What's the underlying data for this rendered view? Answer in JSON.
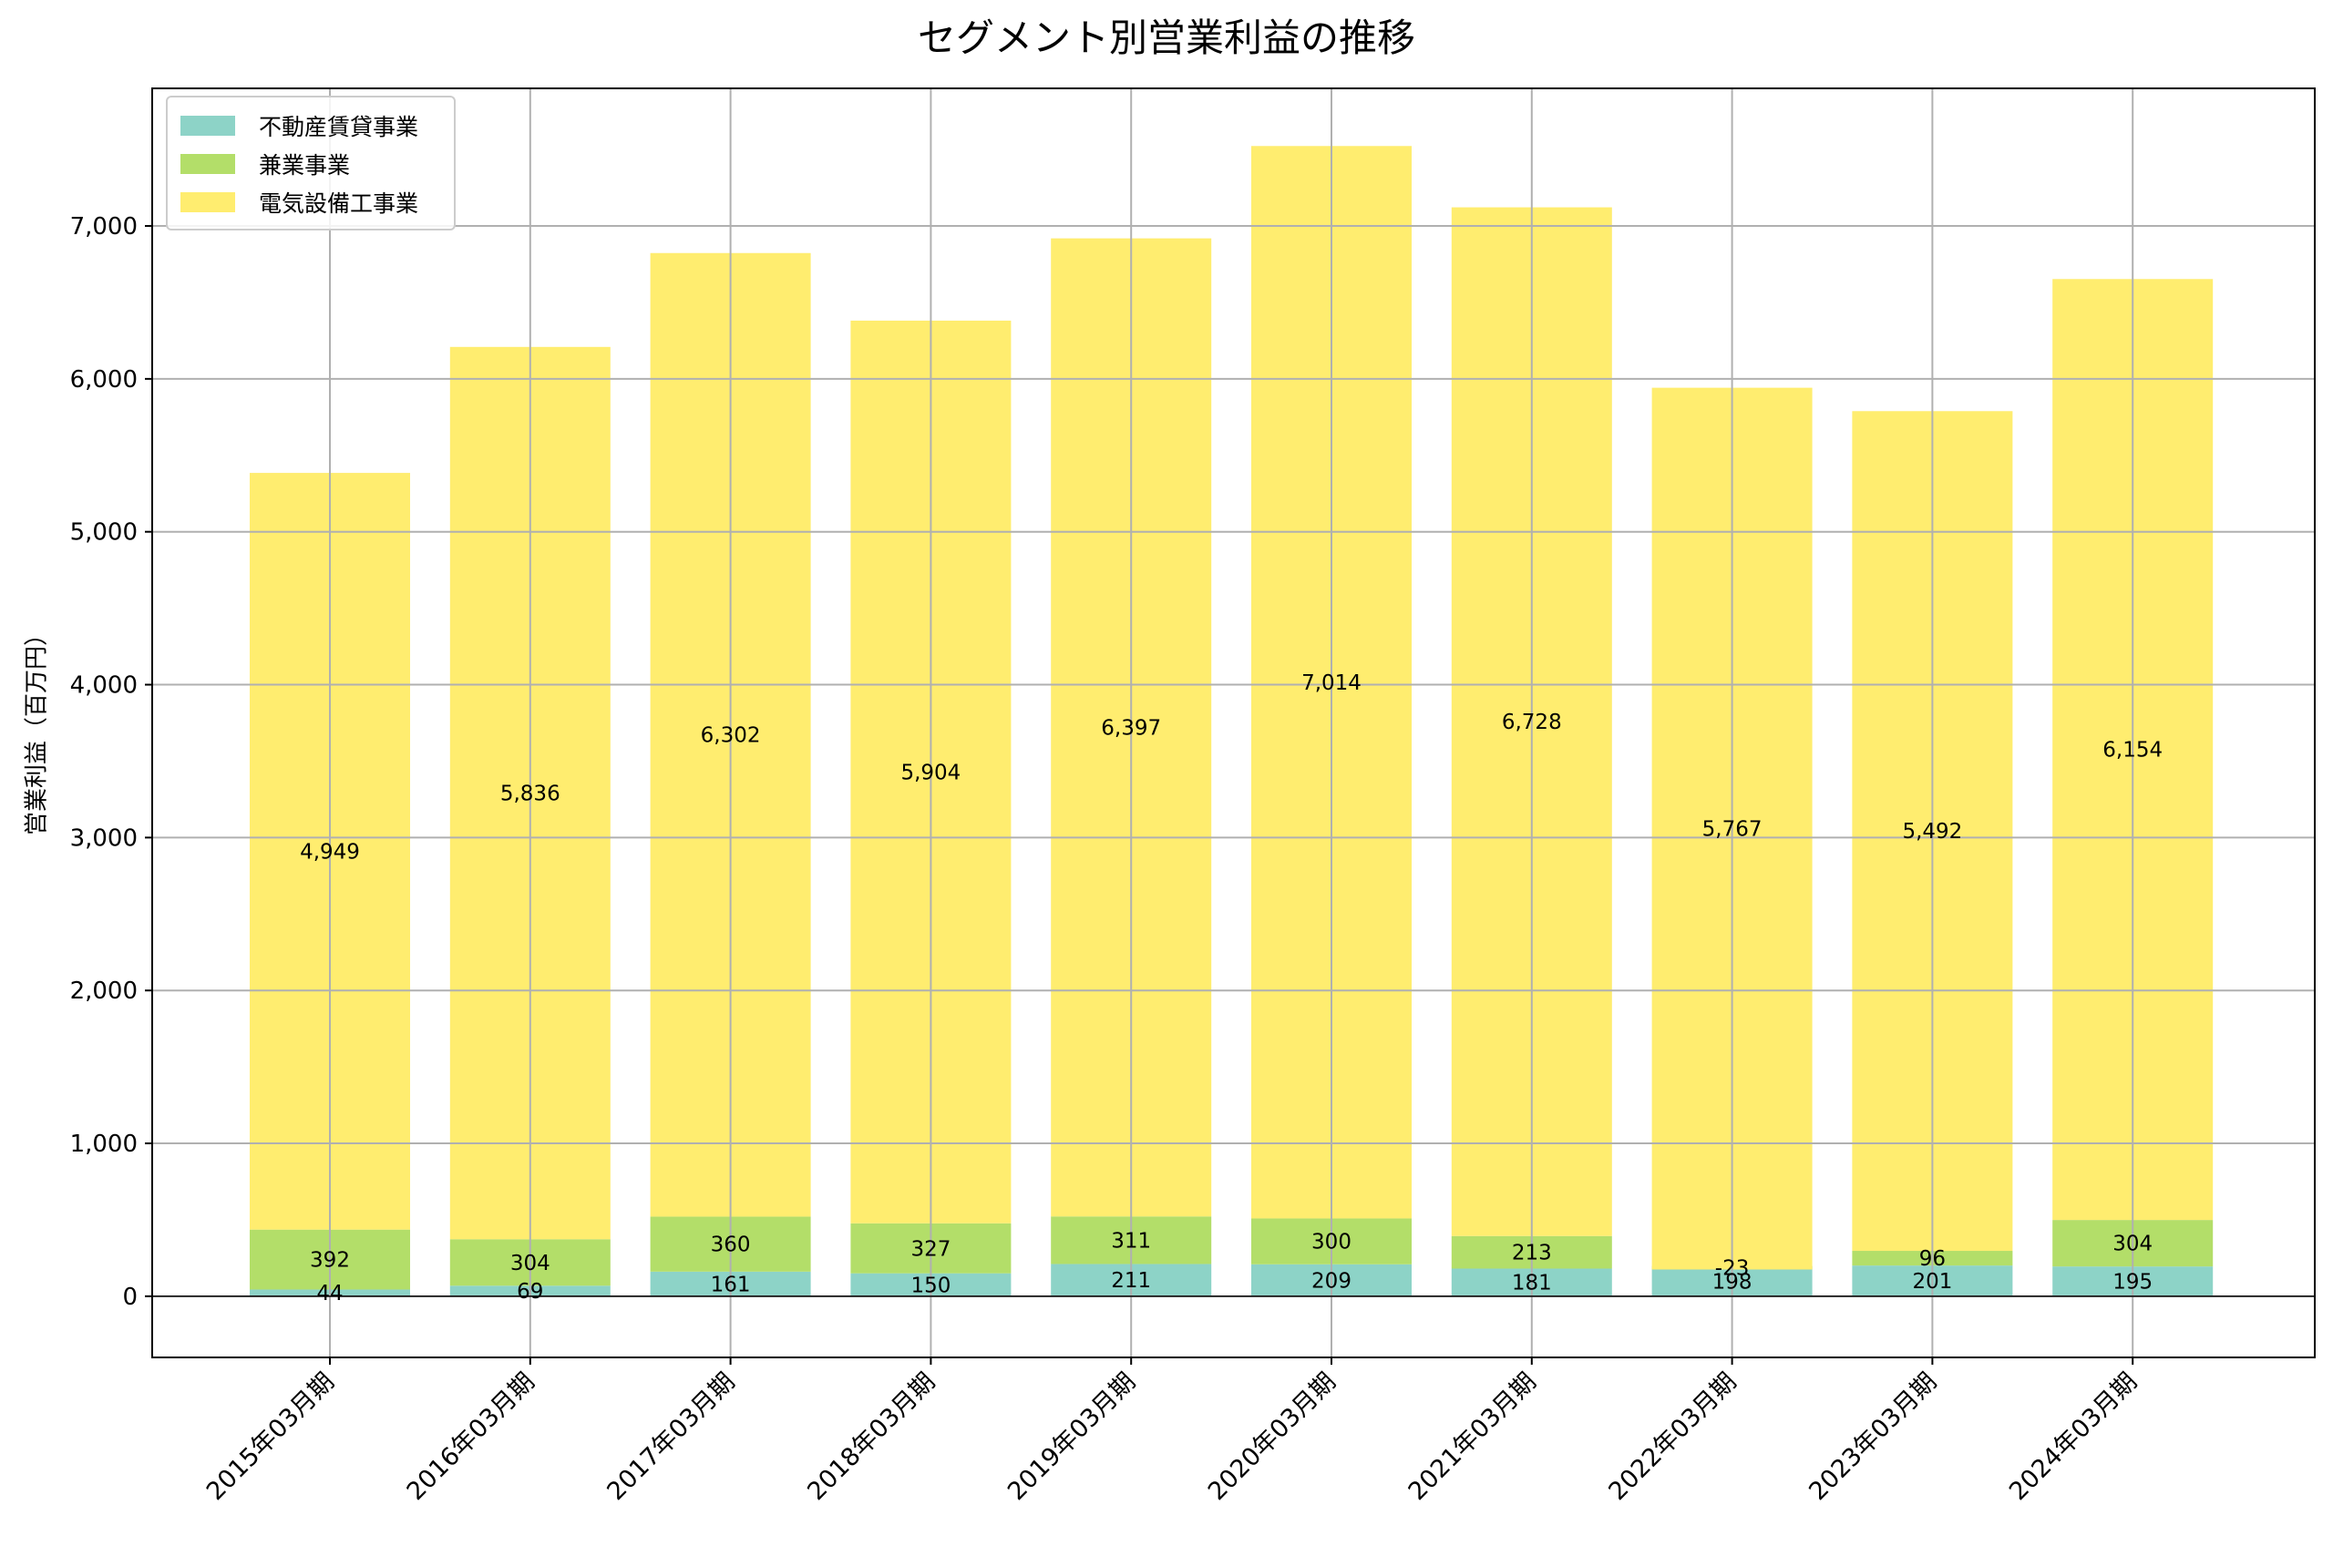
{
  "chart_data": {
    "type": "bar",
    "stacked": true,
    "title": "セグメント別営業利益の推移",
    "xlabel": "",
    "ylabel": "営業利益（百万円）",
    "ylim": [
      -400,
      7900
    ],
    "yticks": [
      0,
      1000,
      2000,
      3000,
      4000,
      5000,
      6000,
      7000
    ],
    "ytick_labels": [
      "0",
      "1,000",
      "2,000",
      "3,000",
      "4,000",
      "5,000",
      "6,000",
      "7,000"
    ],
    "grid": true,
    "legend_position": "top-left",
    "categories": [
      "2015年03月期",
      "2016年03月期",
      "2017年03月期",
      "2018年03月期",
      "2019年03月期",
      "2020年03月期",
      "2021年03月期",
      "2022年03月期",
      "2023年03月期",
      "2024年03月期"
    ],
    "series": [
      {
        "name": "不動産賃貸事業",
        "color": "#8dd3c7",
        "values": [
          44,
          69,
          161,
          150,
          211,
          209,
          181,
          198,
          201,
          195
        ],
        "labels": [
          "44",
          "69",
          "161",
          "150",
          "211",
          "209",
          "181",
          "198",
          "201",
          "195"
        ]
      },
      {
        "name": "兼業事業",
        "color": "#b3de69",
        "values": [
          392,
          304,
          360,
          327,
          311,
          300,
          213,
          -23,
          96,
          304
        ],
        "labels": [
          "392",
          "304",
          "360",
          "327",
          "311",
          "300",
          "213",
          "-23",
          "96",
          "304"
        ]
      },
      {
        "name": "電気設備工事業",
        "color": "#ffed6f",
        "values": [
          4949,
          5836,
          6302,
          5904,
          6397,
          7014,
          6728,
          5767,
          5492,
          6154
        ],
        "labels": [
          "4,949",
          "5,836",
          "6,302",
          "5,904",
          "6,397",
          "7,014",
          "6,728",
          "5,767",
          "5,492",
          "6,154"
        ]
      }
    ]
  }
}
